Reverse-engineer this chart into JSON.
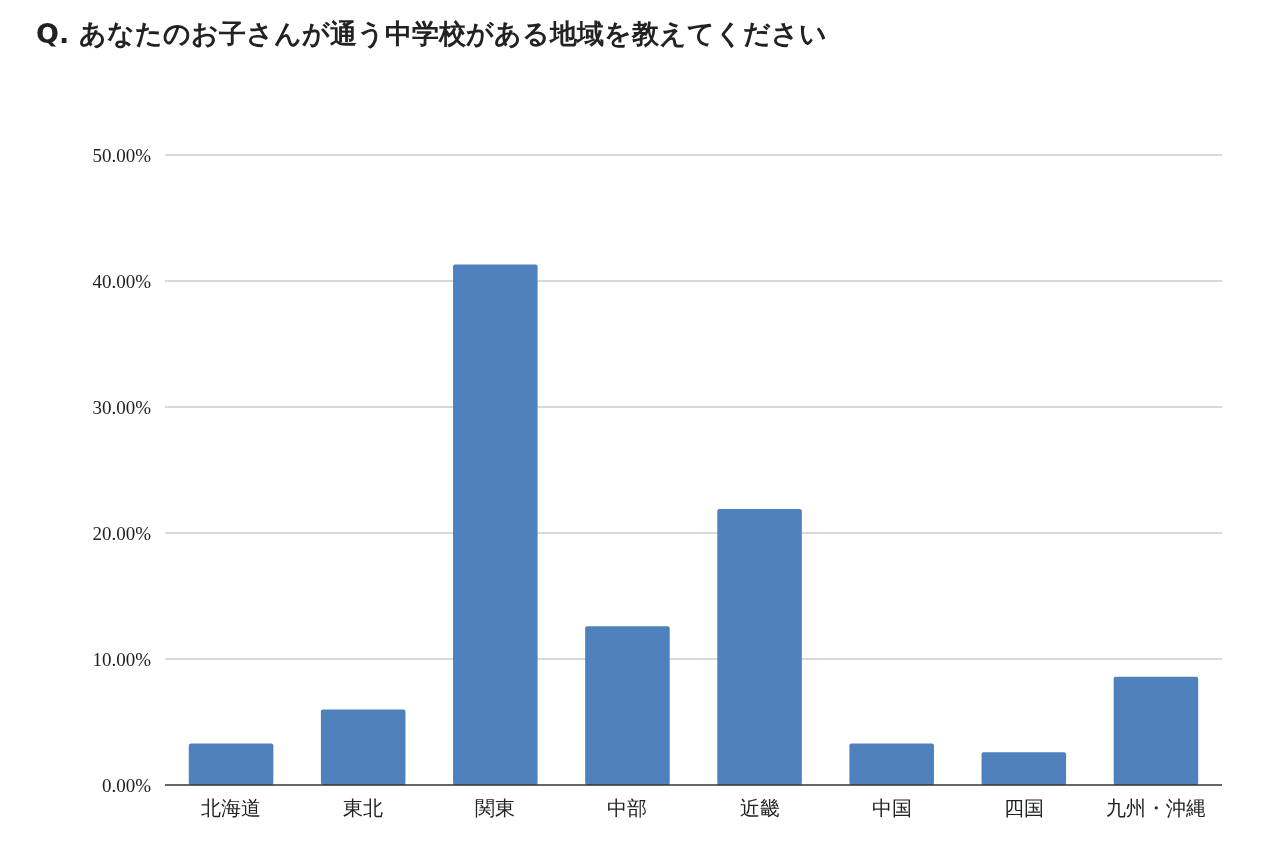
{
  "chart_data": {
    "type": "bar",
    "title": "Q. あなたのお子さんが通う中学校がある地域を教えてください",
    "categories": [
      "北海道",
      "東北",
      "関東",
      "中部",
      "近畿",
      "中国",
      "四国",
      "九州・沖縄"
    ],
    "values": [
      3.3,
      6.0,
      41.3,
      12.6,
      21.9,
      3.3,
      2.6,
      8.6
    ],
    "color": "#4f81bd",
    "ylim": [
      0,
      50
    ],
    "yticks": [
      {
        "value": 0,
        "label": "0.00%"
      },
      {
        "value": 10,
        "label": "10.00%"
      },
      {
        "value": 20,
        "label": "20.00%"
      },
      {
        "value": 30,
        "label": "30.00%"
      },
      {
        "value": 40,
        "label": "40.00%"
      },
      {
        "value": 50,
        "label": "50.00%"
      }
    ],
    "grid": "y"
  }
}
